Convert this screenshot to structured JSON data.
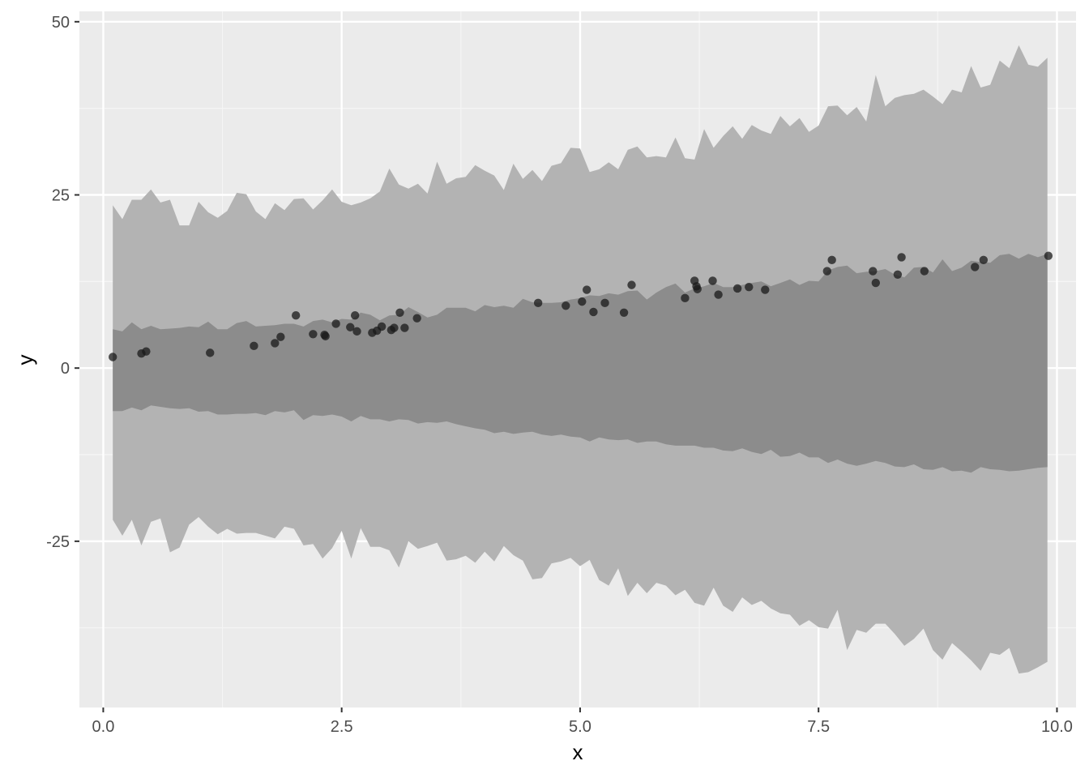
{
  "chart_data": {
    "type": "scatter",
    "xlabel": "x",
    "ylabel": "y",
    "xlim": [
      -0.25,
      10.2
    ],
    "ylim": [
      -49,
      51.5
    ],
    "x_ticks": [
      0.0,
      2.5,
      5.0,
      7.5,
      10.0
    ],
    "x_tick_labels": [
      "0.0",
      "2.5",
      "5.0",
      "7.5",
      "10.0"
    ],
    "y_ticks": [
      50,
      25,
      0,
      -25
    ],
    "y_tick_labels": [
      "50",
      "25",
      "0",
      "-25"
    ],
    "grid": true,
    "colors": {
      "panel_background": "#ebebeb",
      "grid_major": "#ffffff",
      "grid_minor": "#f5f5f5",
      "outer_band": "#b3b3b3",
      "inner_band": "#8c8c8c",
      "points": "#1a1a1a"
    },
    "bands": {
      "x": [
        0.1,
        0.2,
        0.3,
        0.4,
        0.5,
        0.6,
        0.7,
        0.8,
        0.9,
        1.0,
        1.1,
        1.2,
        1.3,
        1.4,
        1.5,
        1.6,
        1.7,
        1.8,
        1.9,
        2.0,
        2.1,
        2.2,
        2.3,
        2.4,
        2.5,
        2.6,
        2.7,
        2.8,
        2.9,
        3.0,
        3.1,
        3.2,
        3.3,
        3.4,
        3.5,
        3.6,
        3.7,
        3.8,
        3.9,
        4.0,
        4.1,
        4.2,
        4.3,
        4.4,
        4.5,
        4.6,
        4.7,
        4.8,
        4.9,
        5.0,
        5.1,
        5.2,
        5.3,
        5.4,
        5.5,
        5.6,
        5.7,
        5.8,
        5.9,
        6.0,
        6.1,
        6.2,
        6.3,
        6.4,
        6.5,
        6.6,
        6.7,
        6.8,
        6.9,
        7.0,
        7.1,
        7.2,
        7.3,
        7.4,
        7.5,
        7.6,
        7.7,
        7.8,
        7.9,
        8.0,
        8.1,
        8.2,
        8.3,
        8.4,
        8.5,
        8.6,
        8.7,
        8.8,
        8.9,
        9.0,
        9.1,
        9.2,
        9.3,
        9.4,
        9.5,
        9.6,
        9.7,
        9.8,
        9.9
      ],
      "outer_upper": [
        23.5,
        21.5,
        24.3,
        24.3,
        25.8,
        23.9,
        24.3,
        20.6,
        20.6,
        24.0,
        22.5,
        21.7,
        22.7,
        25.3,
        25.1,
        22.6,
        21.5,
        23.8,
        22.8,
        24.4,
        24.5,
        22.9,
        24.2,
        25.8,
        24.0,
        23.5,
        23.9,
        24.5,
        25.5,
        28.8,
        26.5,
        25.9,
        26.6,
        25.2,
        29.8,
        26.6,
        27.4,
        27.6,
        29.3,
        28.5,
        27.8,
        25.7,
        29.5,
        27.3,
        28.6,
        27.0,
        29.2,
        29.6,
        31.8,
        31.7,
        28.3,
        28.7,
        29.7,
        28.7,
        31.5,
        32.0,
        30.4,
        30.6,
        30.4,
        33.3,
        30.3,
        30.1,
        34.5,
        31.8,
        33.5,
        34.9,
        33.1,
        35.1,
        34.3,
        33.8,
        36.4,
        34.9,
        36.1,
        34.1,
        35.0,
        37.8,
        37.9,
        36.5,
        37.7,
        35.6,
        42.3,
        37.8,
        39.0,
        39.4,
        39.6,
        40.2,
        39.2,
        38.1,
        40.2,
        39.8,
        43.6,
        40.5,
        40.9,
        44.4,
        43.3,
        46.6,
        43.8,
        43.5,
        44.8
      ],
      "inner_upper": [
        5.6,
        5.3,
        6.6,
        5.6,
        6.1,
        5.6,
        5.7,
        5.8,
        6.0,
        5.9,
        6.7,
        5.6,
        5.6,
        6.5,
        6.8,
        6.0,
        6.1,
        6.2,
        6.4,
        6.4,
        6.0,
        6.8,
        7.0,
        6.6,
        7.1,
        7.0,
        8.0,
        7.7,
        6.9,
        7.6,
        7.7,
        8.8,
        8.1,
        7.3,
        7.7,
        8.7,
        8.7,
        8.7,
        8.2,
        9.1,
        8.8,
        9.0,
        8.7,
        10.0,
        9.5,
        9.4,
        9.4,
        9.5,
        9.9,
        10.1,
        10.5,
        10.4,
        10.8,
        10.6,
        11.1,
        11.2,
        9.9,
        10.9,
        11.7,
        12.2,
        10.9,
        11.5,
        11.8,
        12.3,
        11.7,
        11.7,
        12.0,
        12.3,
        12.5,
        11.8,
        12.3,
        12.8,
        12.0,
        12.6,
        12.5,
        14.1,
        14.6,
        14.8,
        13.7,
        13.9,
        14.0,
        14.3,
        13.5,
        13.1,
        14.5,
        14.6,
        13.8,
        15.7,
        14.0,
        14.5,
        15.5,
        15.3,
        15.2,
        16.3,
        16.5,
        15.8,
        16.5,
        16.0,
        16.5
      ],
      "inner_lower": [
        -6.2,
        -6.2,
        -5.7,
        -6.1,
        -5.4,
        -5.6,
        -5.8,
        -5.9,
        -5.8,
        -6.3,
        -6.2,
        -6.7,
        -6.7,
        -6.6,
        -6.6,
        -6.5,
        -6.8,
        -6.2,
        -6.4,
        -6.1,
        -7.5,
        -6.8,
        -6.9,
        -6.7,
        -7.0,
        -7.7,
        -6.9,
        -7.4,
        -7.4,
        -7.7,
        -7.4,
        -7.5,
        -8.0,
        -7.8,
        -7.9,
        -7.7,
        -8.1,
        -8.4,
        -8.7,
        -8.9,
        -9.4,
        -9.2,
        -9.5,
        -9.3,
        -9.2,
        -9.6,
        -9.8,
        -9.6,
        -9.9,
        -10.0,
        -10.6,
        -10.0,
        -10.3,
        -10.4,
        -10.3,
        -10.8,
        -10.6,
        -10.6,
        -11.0,
        -11.2,
        -11.2,
        -11.2,
        -11.5,
        -11.5,
        -11.9,
        -12.0,
        -11.6,
        -12.1,
        -12.4,
        -11.8,
        -12.8,
        -12.7,
        -12.2,
        -12.9,
        -12.9,
        -13.7,
        -13.2,
        -13.8,
        -14.1,
        -13.8,
        -13.4,
        -13.7,
        -14.2,
        -14.3,
        -13.9,
        -14.6,
        -14.7,
        -14.3,
        -14.9,
        -14.8,
        -15.1,
        -14.3,
        -14.6,
        -14.7,
        -14.9,
        -14.8,
        -14.6,
        -14.4,
        -14.3
      ],
      "outer_lower": [
        -21.9,
        -24.2,
        -21.9,
        -25.6,
        -22.2,
        -21.7,
        -26.6,
        -25.9,
        -22.6,
        -21.5,
        -22.9,
        -24.0,
        -23.2,
        -23.9,
        -23.8,
        -23.8,
        -24.2,
        -24.6,
        -22.9,
        -23.2,
        -25.6,
        -25.4,
        -27.5,
        -26.0,
        -23.5,
        -27.5,
        -23.1,
        -25.8,
        -25.8,
        -26.3,
        -28.8,
        -25.0,
        -26.1,
        -25.7,
        -25.2,
        -27.8,
        -27.6,
        -27.1,
        -28.1,
        -26.5,
        -27.9,
        -25.7,
        -27.0,
        -27.8,
        -30.5,
        -30.3,
        -28.2,
        -27.9,
        -27.4,
        -28.6,
        -27.7,
        -30.6,
        -31.4,
        -28.9,
        -32.9,
        -31.0,
        -32.5,
        -31.0,
        -31.4,
        -32.8,
        -32.0,
        -33.9,
        -34.3,
        -31.7,
        -34.3,
        -35.2,
        -33.1,
        -34.2,
        -33.6,
        -34.7,
        -35.4,
        -35.6,
        -37.2,
        -36.4,
        -37.4,
        -37.6,
        -34.9,
        -40.7,
        -37.8,
        -38.2,
        -36.9,
        -36.9,
        -38.4,
        -40.1,
        -39.1,
        -37.6,
        -40.7,
        -42.1,
        -39.7,
        -40.9,
        -42.2,
        -43.7,
        -41.1,
        -41.4,
        -40.4,
        -44.1,
        -43.9,
        -43.2,
        -42.4
      ]
    },
    "points": {
      "x": [
        0.1,
        0.4,
        0.45,
        1.12,
        1.58,
        1.8,
        1.86,
        2.02,
        2.2,
        2.32,
        2.33,
        2.44,
        2.59,
        2.64,
        2.66,
        2.82,
        2.87,
        2.92,
        3.02,
        3.05,
        3.11,
        3.16,
        3.29,
        4.56,
        4.85,
        5.02,
        5.07,
        5.14,
        5.26,
        5.46,
        5.54,
        6.1,
        6.2,
        6.22,
        6.23,
        6.39,
        6.45,
        6.65,
        6.77,
        6.94,
        7.59,
        7.64,
        8.07,
        8.1,
        8.33,
        8.37,
        8.61,
        9.14,
        9.23,
        9.91
      ],
      "y": [
        1.6,
        2.1,
        2.4,
        2.2,
        3.2,
        3.6,
        4.5,
        7.6,
        4.9,
        4.8,
        4.6,
        6.4,
        5.9,
        7.6,
        5.3,
        5.1,
        5.4,
        6.0,
        5.5,
        5.8,
        8.0,
        5.8,
        7.2,
        9.4,
        9.0,
        9.6,
        11.3,
        8.1,
        9.4,
        8.0,
        12.0,
        10.1,
        12.6,
        11.8,
        11.4,
        12.6,
        10.6,
        11.5,
        11.7,
        11.3,
        14.0,
        15.6,
        14.0,
        12.3,
        13.5,
        16.0,
        14.0,
        14.6,
        15.6,
        16.2
      ]
    }
  }
}
